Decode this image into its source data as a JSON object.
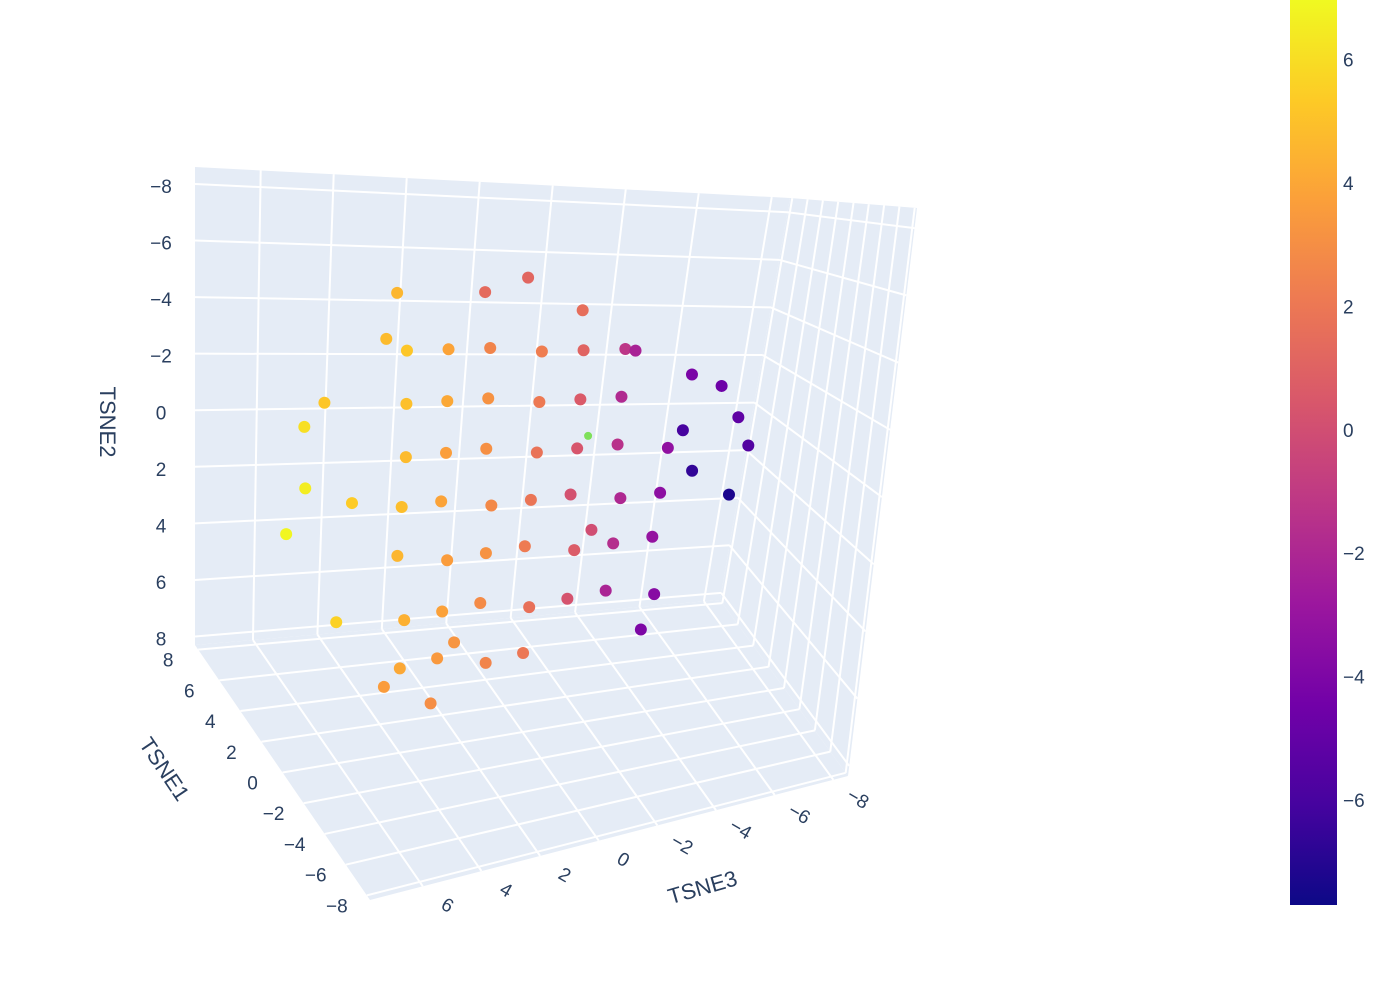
{
  "chart_data": {
    "type": "scatter3d",
    "xaxis_title": "TSNE1",
    "yaxis_title": "TSNE2",
    "zaxis_title": "TSNE3",
    "xlim": [
      -8.3,
      8.3
    ],
    "ylim": [
      -8.6,
      8.3
    ],
    "zlim": [
      -8.5,
      7.8
    ],
    "xticks": [
      8,
      6,
      4,
      2,
      0,
      {
        "value": -2,
        "label": "−2"
      },
      {
        "value": -4,
        "label": "−4"
      },
      {
        "value": -6,
        "label": "−6"
      },
      {
        "value": -8,
        "label": "−8"
      }
    ],
    "yticks": [
      {
        "value": -8,
        "label": "−8"
      },
      {
        "value": -6,
        "label": "−6"
      },
      {
        "value": -4,
        "label": "−4"
      },
      {
        "value": -2,
        "label": "−2"
      },
      0,
      2,
      4,
      6,
      8
    ],
    "zticks": [
      6,
      4,
      2,
      0,
      {
        "value": -2,
        "label": "−2"
      },
      {
        "value": -4,
        "label": "−4"
      },
      {
        "value": -6,
        "label": "−6"
      },
      {
        "value": -8,
        "label": "−8"
      }
    ],
    "grid": true,
    "colorscale": [
      "#0d0887",
      "#46039f",
      "#7201a8",
      "#9c179e",
      "#bd3786",
      "#d8576b",
      "#ed7953",
      "#fb9f3a",
      "#fdca26",
      "#f0f921"
    ],
    "clim": [
      -7.67,
      7.0
    ],
    "colorbar_ticks": [
      {
        "value": -6,
        "label": "−6"
      },
      {
        "value": -4,
        "label": "−4"
      },
      {
        "value": -2,
        "label": "−2"
      },
      0,
      2,
      4,
      6
    ],
    "series": [
      {
        "x": [
          1.2,
          1.6,
          2.0,
          1.2,
          1.6,
          2.0,
          1.2,
          1.6,
          2.0,
          1.2,
          1.6,
          2.0,
          1.2,
          1.6,
          2.0,
          1.2,
          1.6,
          2.0,
          1.2,
          1.6,
          2.0,
          1.2,
          1.6,
          2.0,
          1.2,
          1.6,
          2.0,
          1.2,
          1.6,
          2.0,
          1.2,
          1.6,
          2.0,
          1.2,
          1.6,
          2.0,
          1.2,
          1.6,
          2.0,
          1.2,
          1.6,
          2.0,
          1.2,
          1.6,
          1.6,
          1.6,
          1.6,
          1.6,
          1.6,
          1.6,
          1.6,
          1.6,
          1.6,
          1.6,
          1.6,
          1.6,
          1.6,
          1.6,
          1.6,
          1.6,
          1.6,
          1.6,
          1.6,
          1.6,
          1.6,
          1.6,
          1.6,
          1.6
        ],
        "y": [
          -3.2,
          -3.2,
          -3.2,
          -3.2,
          -3.2,
          -3.2,
          -1.6,
          -1.6,
          -1.6,
          -1.6,
          -1.6,
          -1.6,
          0,
          0,
          0,
          0,
          0,
          0,
          0,
          1.6,
          1.6,
          1.6,
          1.6,
          1.6,
          1.6,
          1.6,
          3.2,
          3.2,
          3.2,
          3.2,
          3.2,
          3.2,
          3.2,
          4.9,
          4.9,
          4.9,
          4.9,
          4.9,
          4.9,
          4.9,
          6.5,
          6.5,
          6.5,
          6.5,
          -5.5,
          -5.0,
          -4.5,
          -4.9,
          -3.5,
          -0.9,
          0.9,
          2.2,
          4.9,
          -1.6,
          1.4,
          -2.4,
          -2.0,
          -0.9,
          0.1,
          1.8,
          0.9,
          -0.5,
          6.2,
          7.7,
          7.0,
          -3.2,
          2.7,
          5.9
        ],
        "z": [
          3.5,
          2.2,
          0.9,
          -0.4,
          -1.7,
          -3.0,
          3.5,
          2.2,
          0.9,
          -0.4,
          -1.7,
          -3.0,
          3.5,
          2.2,
          0.9,
          -0.4,
          -1.7,
          -3.0,
          -4.3,
          3.5,
          2.2,
          0.9,
          -0.4,
          -1.7,
          -3.0,
          -4.3,
          3.5,
          2.2,
          0.9,
          -0.4,
          -1.7,
          -3.0,
          -4.3,
          3.5,
          2.2,
          0.9,
          -0.4,
          -1.7,
          -3.0,
          -4.3,
          3.5,
          2.2,
          0.9,
          -0.4,
          0.0,
          1.2,
          -1.6,
          3.7,
          4.0,
          6.4,
          6.4,
          7.0,
          5.5,
          5.8,
          5.0,
          -4.9,
          -5.8,
          -6.4,
          -6.8,
          -6.4,
          -5.2,
          -4.8,
          -4.1,
          2.5,
          4.0,
          -3.2,
          -2.3,
          1.8
        ],
        "values": [
          5.2,
          3.9,
          2.6,
          2.3,
          1.1,
          -1.2,
          5.0,
          4.1,
          3.2,
          2.1,
          0.6,
          -1.8,
          4.8,
          3.7,
          3.1,
          1.8,
          0.4,
          -1.4,
          -3.2,
          4.9,
          3.9,
          2.8,
          1.9,
          0.2,
          -1.9,
          -3.4,
          4.6,
          3.6,
          3.2,
          2.2,
          0.7,
          -1.6,
          -3.1,
          4.4,
          3.8,
          2.9,
          1.7,
          0.3,
          -2.1,
          -3.6,
          4.1,
          3.5,
          2.6,
          2.0,
          1.2,
          1.4,
          1.6,
          4.6,
          4.8,
          6.1,
          6.6,
          6.9,
          5.6,
          5.2,
          5.4,
          -4.1,
          -4.6,
          -5.1,
          -5.6,
          -7.2,
          -6.6,
          -6.0,
          -4.0,
          3.0,
          3.6,
          -2.2,
          0.0,
          3.3
        ]
      },
      {
        "color": "#7ee05a",
        "x": [
          1.6
        ],
        "y": [
          -0.4
        ],
        "z": [
          -2.0
        ]
      }
    ]
  }
}
